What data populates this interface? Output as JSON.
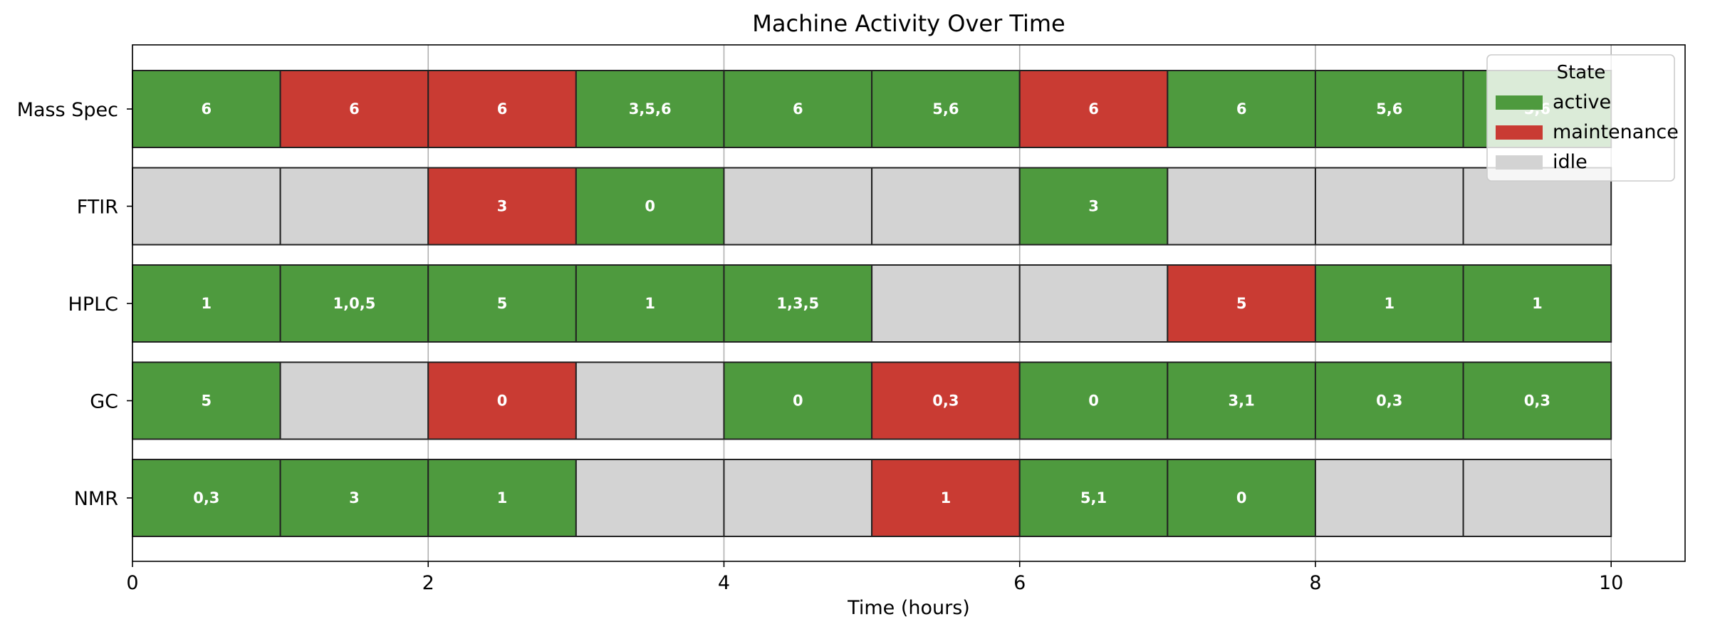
{
  "chart_data": {
    "type": "bar",
    "subtype": "timeline",
    "title": "Machine Activity Over Time",
    "xlabel": "Time (hours)",
    "ylabel": "",
    "xlim": [
      0,
      10.5
    ],
    "xticks": [
      0,
      2,
      4,
      6,
      8,
      10
    ],
    "grid": "vertical",
    "rows": [
      "NMR",
      "GC",
      "HPLC",
      "FTIR",
      "Mass Spec"
    ],
    "state_colors": {
      "active": "#4e9a3e",
      "maintenance": "#c93b33",
      "idle": "#d3d3d3"
    },
    "legend": {
      "title": "State",
      "position": "top-right",
      "items": [
        "active",
        "maintenance",
        "idle"
      ]
    },
    "segments": [
      {
        "row": "Mass Spec",
        "start": 0,
        "end": 1,
        "state": "active",
        "label": "6"
      },
      {
        "row": "Mass Spec",
        "start": 1,
        "end": 2,
        "state": "maintenance",
        "label": "6"
      },
      {
        "row": "Mass Spec",
        "start": 2,
        "end": 3,
        "state": "maintenance",
        "label": "6"
      },
      {
        "row": "Mass Spec",
        "start": 3,
        "end": 4,
        "state": "active",
        "label": "3,5,6"
      },
      {
        "row": "Mass Spec",
        "start": 4,
        "end": 5,
        "state": "active",
        "label": "6"
      },
      {
        "row": "Mass Spec",
        "start": 5,
        "end": 6,
        "state": "active",
        "label": "5,6"
      },
      {
        "row": "Mass Spec",
        "start": 6,
        "end": 7,
        "state": "maintenance",
        "label": "6"
      },
      {
        "row": "Mass Spec",
        "start": 7,
        "end": 8,
        "state": "active",
        "label": "6"
      },
      {
        "row": "Mass Spec",
        "start": 8,
        "end": 9,
        "state": "active",
        "label": "5,6"
      },
      {
        "row": "Mass Spec",
        "start": 9,
        "end": 10,
        "state": "active",
        "label": "5,6"
      },
      {
        "row": "FTIR",
        "start": 0,
        "end": 1,
        "state": "idle",
        "label": ""
      },
      {
        "row": "FTIR",
        "start": 1,
        "end": 2,
        "state": "idle",
        "label": ""
      },
      {
        "row": "FTIR",
        "start": 2,
        "end": 3,
        "state": "maintenance",
        "label": "3"
      },
      {
        "row": "FTIR",
        "start": 3,
        "end": 4,
        "state": "active",
        "label": "0"
      },
      {
        "row": "FTIR",
        "start": 4,
        "end": 5,
        "state": "idle",
        "label": ""
      },
      {
        "row": "FTIR",
        "start": 5,
        "end": 6,
        "state": "idle",
        "label": ""
      },
      {
        "row": "FTIR",
        "start": 6,
        "end": 7,
        "state": "active",
        "label": "3"
      },
      {
        "row": "FTIR",
        "start": 7,
        "end": 8,
        "state": "idle",
        "label": ""
      },
      {
        "row": "FTIR",
        "start": 8,
        "end": 9,
        "state": "idle",
        "label": ""
      },
      {
        "row": "FTIR",
        "start": 9,
        "end": 10,
        "state": "idle",
        "label": ""
      },
      {
        "row": "HPLC",
        "start": 0,
        "end": 1,
        "state": "active",
        "label": "1"
      },
      {
        "row": "HPLC",
        "start": 1,
        "end": 2,
        "state": "active",
        "label": "1,0,5"
      },
      {
        "row": "HPLC",
        "start": 2,
        "end": 3,
        "state": "active",
        "label": "5"
      },
      {
        "row": "HPLC",
        "start": 3,
        "end": 4,
        "state": "active",
        "label": "1"
      },
      {
        "row": "HPLC",
        "start": 4,
        "end": 5,
        "state": "active",
        "label": "1,3,5"
      },
      {
        "row": "HPLC",
        "start": 5,
        "end": 6,
        "state": "idle",
        "label": ""
      },
      {
        "row": "HPLC",
        "start": 6,
        "end": 7,
        "state": "idle",
        "label": ""
      },
      {
        "row": "HPLC",
        "start": 7,
        "end": 8,
        "state": "maintenance",
        "label": "5"
      },
      {
        "row": "HPLC",
        "start": 8,
        "end": 9,
        "state": "active",
        "label": "1"
      },
      {
        "row": "HPLC",
        "start": 9,
        "end": 10,
        "state": "active",
        "label": "1"
      },
      {
        "row": "GC",
        "start": 0,
        "end": 1,
        "state": "active",
        "label": "5"
      },
      {
        "row": "GC",
        "start": 1,
        "end": 2,
        "state": "idle",
        "label": ""
      },
      {
        "row": "GC",
        "start": 2,
        "end": 3,
        "state": "maintenance",
        "label": "0"
      },
      {
        "row": "GC",
        "start": 3,
        "end": 4,
        "state": "idle",
        "label": ""
      },
      {
        "row": "GC",
        "start": 4,
        "end": 5,
        "state": "active",
        "label": "0"
      },
      {
        "row": "GC",
        "start": 5,
        "end": 6,
        "state": "maintenance",
        "label": "0,3"
      },
      {
        "row": "GC",
        "start": 6,
        "end": 7,
        "state": "active",
        "label": "0"
      },
      {
        "row": "GC",
        "start": 7,
        "end": 8,
        "state": "active",
        "label": "3,1"
      },
      {
        "row": "GC",
        "start": 8,
        "end": 9,
        "state": "active",
        "label": "0,3"
      },
      {
        "row": "GC",
        "start": 9,
        "end": 10,
        "state": "active",
        "label": "0,3"
      },
      {
        "row": "NMR",
        "start": 0,
        "end": 1,
        "state": "active",
        "label": "0,3"
      },
      {
        "row": "NMR",
        "start": 1,
        "end": 2,
        "state": "active",
        "label": "3"
      },
      {
        "row": "NMR",
        "start": 2,
        "end": 3,
        "state": "active",
        "label": "1"
      },
      {
        "row": "NMR",
        "start": 3,
        "end": 4,
        "state": "idle",
        "label": ""
      },
      {
        "row": "NMR",
        "start": 4,
        "end": 5,
        "state": "idle",
        "label": ""
      },
      {
        "row": "NMR",
        "start": 5,
        "end": 6,
        "state": "maintenance",
        "label": "1"
      },
      {
        "row": "NMR",
        "start": 6,
        "end": 7,
        "state": "active",
        "label": "5,1"
      },
      {
        "row": "NMR",
        "start": 7,
        "end": 8,
        "state": "active",
        "label": "0"
      },
      {
        "row": "NMR",
        "start": 8,
        "end": 9,
        "state": "idle",
        "label": ""
      },
      {
        "row": "NMR",
        "start": 9,
        "end": 10,
        "state": "idle",
        "label": ""
      }
    ]
  }
}
